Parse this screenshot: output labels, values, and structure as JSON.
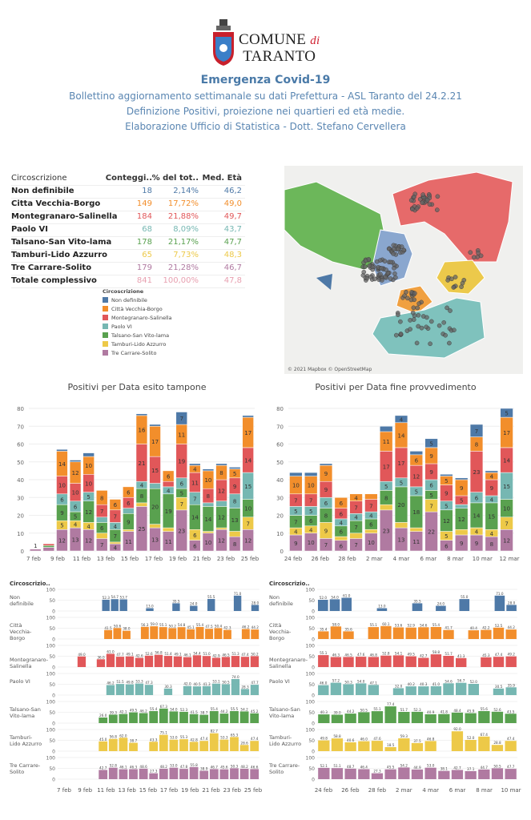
{
  "header": {
    "logo_line1": "COMUNE",
    "logo_di": "di",
    "logo_line2": "TARANTO",
    "title": "Emergenza Covid-19",
    "line1": "Bollettino aggiornamento settimanale su dati Prefettura - ASL Taranto del 24.2.21",
    "line2": "Definizione Positivi, proiezione nei quartieri ed età medie.",
    "line3": "Elaborazione Ufficio di Statistica - Dott. Stefano Cervellera"
  },
  "colors": {
    "Non definibile": "#4e79a7",
    "Città Vecchia-Borgo": "#f28e2b",
    "Montegranaro-Salinella": "#e15759",
    "Paolo VI": "#76b7b2",
    "Talsano-San Vito-lama": "#59a14f",
    "Tamburi-Lido Azzurro": "#edc948",
    "Tre Carrare-Solito": "#b07aa1"
  },
  "table": {
    "headers": [
      "Circoscrizione",
      "Conteggi..",
      "% del tot..",
      "Med. Età"
    ],
    "rows": [
      {
        "name": "Non definibile",
        "count": "18",
        "pct": "2,14%",
        "age": "46,2",
        "color": "#4e79a7"
      },
      {
        "name": "Citta Vecchia-Borgo",
        "count": "149",
        "pct": "17,72%",
        "age": "49,0",
        "color": "#f28e2b"
      },
      {
        "name": "Montegranaro-Salinella",
        "count": "184",
        "pct": "21,88%",
        "age": "49,7",
        "color": "#e15759"
      },
      {
        "name": "Paolo VI",
        "count": "68",
        "pct": "8,09%",
        "age": "43,7",
        "color": "#76b7b2"
      },
      {
        "name": "Talsano-San Vito-lama",
        "count": "178",
        "pct": "21,17%",
        "age": "47,7",
        "color": "#59a14f"
      },
      {
        "name": "Tamburi-Lido Azzurro",
        "count": "65",
        "pct": "7,73%",
        "age": "48,3",
        "color": "#edc948"
      },
      {
        "name": "Tre Carrare-Solito",
        "count": "179",
        "pct": "21,28%",
        "age": "46,7",
        "color": "#b07aa1"
      },
      {
        "name": "Totale complessivo",
        "count": "841",
        "pct": "100,00%",
        "age": "47,8",
        "color": "#e8a0b0"
      }
    ]
  },
  "legend": {
    "title": "Circoscrizione",
    "items": [
      {
        "label": "Non definibile",
        "color": "#4e79a7"
      },
      {
        "label": "Città Vecchia-Borgo",
        "color": "#f28e2b"
      },
      {
        "label": "Montegranaro-Salinella",
        "color": "#e15759"
      },
      {
        "label": "Paolo VI",
        "color": "#76b7b2"
      },
      {
        "label": "Talsano-San Vito-lama",
        "color": "#59a14f"
      },
      {
        "label": "Tamburi-Lido Azzurro",
        "color": "#edc948"
      },
      {
        "label": "Tre Carrare-Solito",
        "color": "#b07aa1"
      }
    ]
  },
  "map": {
    "credit": "© 2021 Mapbox © OpenStreetMap"
  },
  "chart_data": [
    {
      "type": "bar",
      "stacked": true,
      "title": "Positivi per Data esito tampone",
      "ylim": [
        0,
        80
      ],
      "yticks": [
        0,
        10,
        20,
        30,
        40,
        50,
        60,
        70,
        80
      ],
      "x_tick_labels": [
        "7 feb",
        "9 feb",
        "11 feb",
        "13 feb",
        "15 feb",
        "17 feb",
        "19 feb",
        "21 feb",
        "23 feb",
        "25 feb"
      ],
      "series_order": [
        "Tre Carrare-Solito",
        "Tamburi-Lido Azzurro",
        "Talsano-San Vito-lama",
        "Paolo VI",
        "Montegranaro-Salinella",
        "Città Vecchia-Borgo",
        "Non definibile"
      ],
      "days": [
        {
          "Tre Carrare-Solito": 1
        },
        {
          "Tre Carrare-Solito": 2,
          "Talsano-San Vito-lama": 1,
          "Montegranaro-Salinella": 1
        },
        {
          "Tre Carrare-Solito": 12,
          "Tamburi-Lido Azzurro": 5,
          "Talsano-San Vito-lama": 9,
          "Paolo VI": 6,
          "Montegranaro-Salinella": 10,
          "Città Vecchia-Borgo": 14,
          "Non definibile": 1
        },
        {
          "Tre Carrare-Solito": 13,
          "Tamburi-Lido Azzurro": 4,
          "Talsano-San Vito-lama": 5,
          "Paolo VI": 6,
          "Montegranaro-Salinella": 10,
          "Città Vecchia-Borgo": 12,
          "Non definibile": 1
        },
        {
          "Tre Carrare-Solito": 12,
          "Tamburi-Lido Azzurro": 4,
          "Talsano-San Vito-lama": 12,
          "Paolo VI": 5,
          "Montegranaro-Salinella": 10,
          "Città Vecchia-Borgo": 10,
          "Non definibile": 2
        },
        {
          "Tre Carrare-Solito": 7,
          "Tamburi-Lido Azzurro": 3,
          "Talsano-San Vito-lama": 6,
          "Paolo VI": 3,
          "Montegranaro-Salinella": 7,
          "Città Vecchia-Borgo": 8
        },
        {
          "Tre Carrare-Solito": 4,
          "Tamburi-Lido Azzurro": 1,
          "Talsano-San Vito-lama": 7,
          "Paolo VI": 4,
          "Montegranaro-Salinella": 7,
          "Città Vecchia-Borgo": 6
        },
        {
          "Tre Carrare-Solito": 11,
          "Tamburi-Lido Azzurro": 1,
          "Talsano-San Vito-lama": 9,
          "Paolo VI": 3,
          "Montegranaro-Salinella": 6,
          "Città Vecchia-Borgo": 6
        },
        {
          "Tre Carrare-Solito": 25,
          "Tamburi-Lido Azzurro": 2,
          "Talsano-San Vito-lama": 8,
          "Paolo VI": 4,
          "Montegranaro-Salinella": 21,
          "Città Vecchia-Borgo": 16,
          "Non definibile": 1
        },
        {
          "Tre Carrare-Solito": 13,
          "Tamburi-Lido Azzurro": 2,
          "Talsano-San Vito-lama": 20,
          "Paolo VI": 3,
          "Montegranaro-Salinella": 15,
          "Città Vecchia-Borgo": 17,
          "Non definibile": 1
        },
        {
          "Tre Carrare-Solito": 11,
          "Tamburi-Lido Azzurro": 2,
          "Talsano-San Vito-lama": 19,
          "Paolo VI": 4,
          "Montegranaro-Salinella": 3,
          "Città Vecchia-Borgo": 6
        },
        {
          "Tre Carrare-Solito": 23,
          "Tamburi-Lido Azzurro": 7,
          "Talsano-San Vito-lama": 5,
          "Paolo VI": 6,
          "Montegranaro-Salinella": 19,
          "Città Vecchia-Borgo": 11,
          "Non definibile": 7
        },
        {
          "Tre Carrare-Solito": 6,
          "Tamburi-Lido Azzurro": 6,
          "Talsano-San Vito-lama": 14,
          "Paolo VI": 7,
          "Montegranaro-Salinella": 11,
          "Città Vecchia-Borgo": 4,
          "Non definibile": 1
        },
        {
          "Tre Carrare-Solito": 10,
          "Tamburi-Lido Azzurro": 1,
          "Talsano-San Vito-lama": 14,
          "Paolo VI": 2,
          "Montegranaro-Salinella": 8,
          "Città Vecchia-Borgo": 10,
          "Non definibile": 1
        },
        {
          "Tre Carrare-Solito": 12,
          "Tamburi-Lido Azzurro": 1,
          "Talsano-San Vito-lama": 12,
          "Paolo VI": 3,
          "Montegranaro-Salinella": 12,
          "Città Vecchia-Borgo": 8,
          "Non definibile": 1
        },
        {
          "Tre Carrare-Solito": 8,
          "Tamburi-Lido Azzurro": 3,
          "Talsano-San Vito-lama": 13,
          "Paolo VI": 8,
          "Montegranaro-Salinella": 9,
          "Città Vecchia-Borgo": 5,
          "Non definibile": 1
        },
        {
          "Tre Carrare-Solito": 12,
          "Tamburi-Lido Azzurro": 7,
          "Talsano-San Vito-lama": 10,
          "Paolo VI": 15,
          "Montegranaro-Salinella": 14,
          "Città Vecchia-Borgo": 17,
          "Non definibile": 1
        }
      ]
    },
    {
      "type": "bar",
      "stacked": true,
      "title": "Positivi per Data fine provvedimento",
      "ylim": [
        0,
        80
      ],
      "yticks": [
        0,
        10,
        20,
        30,
        40,
        50,
        60,
        70,
        80
      ],
      "x_tick_labels": [
        "24 feb",
        "26 feb",
        "28 feb",
        "2 mar",
        "4 mar",
        "6 mar",
        "8 mar",
        "10 mar",
        "12 mar"
      ],
      "series_order": [
        "Tre Carrare-Solito",
        "Tamburi-Lido Azzurro",
        "Talsano-San Vito-lama",
        "Paolo VI",
        "Montegranaro-Salinella",
        "Città Vecchia-Borgo",
        "Non definibile"
      ],
      "days": [
        {
          "Tre Carrare-Solito": 9,
          "Tamburi-Lido Azzurro": 4,
          "Talsano-San Vito-lama": 7,
          "Paolo VI": 5,
          "Montegranaro-Salinella": 7,
          "Città Vecchia-Borgo": 10,
          "Non definibile": 2
        },
        {
          "Tre Carrare-Solito": 10,
          "Tamburi-Lido Azzurro": 4,
          "Talsano-San Vito-lama": 6,
          "Paolo VI": 5,
          "Montegranaro-Salinella": 7,
          "Città Vecchia-Borgo": 10,
          "Non definibile": 2
        },
        {
          "Tre Carrare-Solito": 7,
          "Tamburi-Lido Azzurro": 9,
          "Talsano-San Vito-lama": 8,
          "Paolo VI": 6,
          "Montegranaro-Salinella": 9,
          "Città Vecchia-Borgo": 9,
          "Non definibile": 1
        },
        {
          "Tre Carrare-Solito": 6,
          "Tamburi-Lido Azzurro": 2,
          "Talsano-San Vito-lama": 6,
          "Paolo VI": 4,
          "Montegranaro-Salinella": 6,
          "Città Vecchia-Borgo": 6
        },
        {
          "Tre Carrare-Solito": 7,
          "Tamburi-Lido Azzurro": 3,
          "Talsano-San Vito-lama": 7,
          "Paolo VI": 4,
          "Montegranaro-Salinella": 7,
          "Città Vecchia-Borgo": 4
        },
        {
          "Tre Carrare-Solito": 10,
          "Tamburi-Lido Azzurro": 2,
          "Talsano-San Vito-lama": 6,
          "Paolo VI": 4,
          "Montegranaro-Salinella": 7,
          "Città Vecchia-Borgo": 3
        },
        {
          "Tre Carrare-Solito": 23,
          "Tamburi-Lido Azzurro": 3,
          "Talsano-San Vito-lama": 8,
          "Paolo VI": 5,
          "Montegranaro-Salinella": 17,
          "Città Vecchia-Borgo": 11,
          "Non definibile": 3
        },
        {
          "Tre Carrare-Solito": 13,
          "Tamburi-Lido Azzurro": 3,
          "Talsano-San Vito-lama": 20,
          "Paolo VI": 5,
          "Montegranaro-Salinella": 17,
          "Città Vecchia-Borgo": 14,
          "Non definibile": 4
        },
        {
          "Tre Carrare-Solito": 11,
          "Tamburi-Lido Azzurro": 2,
          "Talsano-San Vito-lama": 18,
          "Paolo VI": 5,
          "Montegranaro-Salinella": 12,
          "Città Vecchia-Borgo": 6,
          "Non definibile": 2
        },
        {
          "Tre Carrare-Solito": 22,
          "Tamburi-Lido Azzurro": 7,
          "Talsano-San Vito-lama": 5,
          "Paolo VI": 6,
          "Montegranaro-Salinella": 9,
          "Città Vecchia-Borgo": 9,
          "Non definibile": 5
        },
        {
          "Tre Carrare-Solito": 6,
          "Tamburi-Lido Azzurro": 5,
          "Talsano-San Vito-lama": 12,
          "Paolo VI": 5,
          "Montegranaro-Salinella": 9,
          "Città Vecchia-Borgo": 5,
          "Non definibile": 1
        },
        {
          "Tre Carrare-Solito": 9,
          "Tamburi-Lido Azzurro": 3,
          "Talsano-San Vito-lama": 12,
          "Paolo VI": 2,
          "Montegranaro-Salinella": 5,
          "Città Vecchia-Borgo": 9,
          "Non definibile": 1
        },
        {
          "Tre Carrare-Solito": 9,
          "Tamburi-Lido Azzurro": 4,
          "Talsano-San Vito-lama": 14,
          "Paolo VI": 6,
          "Montegranaro-Salinella": 23,
          "Città Vecchia-Borgo": 8,
          "Non definibile": 7
        },
        {
          "Tre Carrare-Solito": 8,
          "Tamburi-Lido Azzurro": 4,
          "Talsano-San Vito-lama": 15,
          "Paolo VI": 4,
          "Montegranaro-Salinella": 9,
          "Città Vecchia-Borgo": 4,
          "Non definibile": 1
        },
        {
          "Tre Carrare-Solito": 12,
          "Tamburi-Lido Azzurro": 7,
          "Talsano-San Vito-lama": 10,
          "Paolo VI": 15,
          "Montegranaro-Salinella": 14,
          "Città Vecchia-Borgo": 17,
          "Non definibile": 5
        }
      ]
    },
    {
      "type": "bar",
      "small_multiples": true,
      "header": "Circoscrizio..",
      "ylim": [
        0,
        100
      ],
      "yticks": [
        0,
        50,
        100
      ],
      "x_tick_labels": [
        "7 feb",
        "9 feb",
        "11 feb",
        "13 feb",
        "15 feb",
        "17 feb",
        "19 feb",
        "21 feb",
        "23 feb",
        "25 feb"
      ],
      "rows": [
        {
          "label": "Non definibile",
          "values": [
            null,
            null,
            null,
            null,
            null,
            52.3,
            54.7,
            53.7,
            null,
            null,
            13.0,
            null,
            null,
            35.5,
            null,
            24.0,
            null,
            55.5,
            null,
            null,
            71.0,
            null,
            28.0
          ]
        },
        {
          "label": "Città Vecchia-Borgo",
          "values": [
            null,
            null,
            null,
            null,
            null,
            41.5,
            50.6,
            38.0,
            null,
            56.3,
            59.0,
            55.1,
            50.2,
            54.8,
            45.1,
            55.4,
            47.5,
            50.4,
            42.3,
            null,
            46.2,
            44.2
          ]
        },
        {
          "label": "Montegranaro-Salinella",
          "values": [
            null,
            null,
            49.0,
            null,
            36.0,
            61.0,
            47.7,
            49.1,
            42.6,
            52.6,
            56.8,
            51.4,
            49.1,
            46.1,
            54.4,
            51.0,
            42.9,
            46.5,
            51.3,
            47.4,
            50.2
          ]
        },
        {
          "label": "Paolo VI",
          "values": [
            null,
            null,
            null,
            null,
            null,
            46.2,
            51.5,
            49.8,
            53.3,
            47.3,
            null,
            30.3,
            null,
            42.0,
            40.5,
            41.3,
            53.1,
            50.5,
            74.0,
            28.3,
            47.7
          ]
        },
        {
          "label": "Talsano-San Vito-lama",
          "values": [
            null,
            null,
            null,
            null,
            26.0,
            39.3,
            42.1,
            49.5,
            46.2,
            55.4,
            67.3,
            54.0,
            52.3,
            41.5,
            38.7,
            55.4,
            44.2,
            55.5,
            54.2,
            45.2
          ]
        },
        {
          "label": "Tamburi-Lido Azzurro",
          "values": [
            null,
            null,
            null,
            null,
            45.0,
            56.8,
            62.0,
            38.7,
            null,
            43.3,
            75.1,
            53.0,
            55.3,
            42.8,
            47.4,
            82.7,
            53.3,
            65.3,
            28.6,
            47.4
          ]
        },
        {
          "label": "Tre Carrare-Solito",
          "values": [
            null,
            null,
            null,
            null,
            42.7,
            52.8,
            46.1,
            46.3,
            48.6,
            27.3,
            48.2,
            53.0,
            47.8,
            55.8,
            38.9,
            46.7,
            45.6,
            50.3,
            48.2,
            46.6
          ]
        }
      ]
    },
    {
      "type": "bar",
      "small_multiples": true,
      "header": "Circoscrizio..",
      "ylim": [
        0,
        100
      ],
      "yticks": [
        0,
        50,
        100
      ],
      "x_tick_labels": [
        "24 feb",
        "26 feb",
        "28 feb",
        "2 mar",
        "4 mar",
        "6 mar",
        "8 mar",
        "10 mar"
      ],
      "rows": [
        {
          "label": "Non definibile",
          "values": [
            52.0,
            54.0,
            61.0,
            null,
            null,
            13.0,
            null,
            null,
            35.5,
            null,
            24.0,
            null,
            55.0,
            null,
            null,
            71.0,
            28.0
          ]
        },
        {
          "label": "Città Vecchia-Borgo",
          "values": [
            35.4,
            58.0,
            35.6,
            null,
            55.1,
            60.1,
            53.6,
            52.9,
            54.6,
            55.4,
            41.7,
            null,
            40.4,
            42.2,
            52.5,
            44.2
          ]
        },
        {
          "label": "Montegranaro-Salinella",
          "values": [
            55.1,
            46.3,
            46.5,
            47.6,
            46.8,
            52.8,
            54.1,
            49.5,
            42.7,
            58.8,
            51.7,
            41.3,
            null,
            45.3,
            47.4,
            49.2
          ]
        },
        {
          "label": "Paolo VI",
          "values": [
            46.0,
            57.2,
            50.3,
            54.0,
            47.1,
            null,
            32.0,
            40.2,
            40.3,
            41.0,
            54.6,
            56.7,
            52.0,
            null,
            30.5,
            35.9
          ]
        },
        {
          "label": "Talsano-San Vito-lama",
          "values": [
            40.3,
            39.0,
            44.2,
            50.5,
            55.1,
            77.4,
            51.7,
            52.3,
            40.9,
            41.8,
            48.4,
            45.9,
            55.6,
            52.6,
            43.5
          ]
        },
        {
          "label": "Tamburi-Lido Azzurro",
          "values": [
            49.8,
            58.8,
            40.6,
            46.0,
            47.6,
            18.5,
            59.3,
            37.5,
            46.8,
            null,
            92.0,
            52.0,
            67.4,
            28.8,
            47.4
          ]
        },
        {
          "label": "Tre Carrare-Solito",
          "values": [
            52.1,
            51.1,
            48.7,
            46.4,
            27.3,
            45.5,
            54.2,
            44.9,
            53.0,
            38.1,
            42.7,
            37.1,
            44.7,
            50.5,
            47.7
          ]
        }
      ]
    }
  ]
}
